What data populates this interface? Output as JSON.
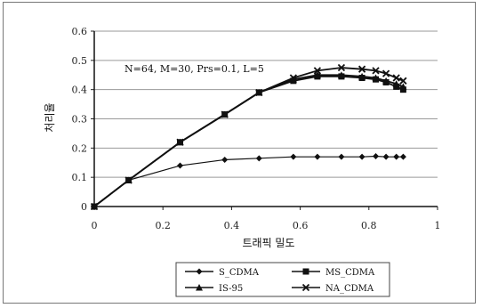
{
  "chart_data": {
    "type": "line",
    "title": "",
    "annotation": "N=64, M=30, Prs=0.1, L=5",
    "xlabel": "트래픽 밀도",
    "ylabel": "처리율",
    "xlim": [
      0,
      1
    ],
    "ylim": [
      0,
      0.6
    ],
    "xticks": [
      0,
      0.2,
      0.4,
      0.6,
      0.8,
      1
    ],
    "xtick_labels": [
      "0",
      "0.2",
      "0.4",
      "0.6",
      "0.8",
      "1"
    ],
    "yticks": [
      0,
      0.1,
      0.2,
      0.3,
      0.4,
      0.5,
      0.6
    ],
    "ytick_labels": [
      "0",
      "0.1",
      "0.2",
      "0.3",
      "0.4",
      "0.5",
      "0.6"
    ],
    "grid": "horizontal",
    "legend_position": "bottom",
    "series": [
      {
        "name": "S_CDMA",
        "marker": "diamond",
        "x": [
          0,
          0.1,
          0.25,
          0.38,
          0.48,
          0.58,
          0.65,
          0.72,
          0.78,
          0.82,
          0.85,
          0.88,
          0.9
        ],
        "values": [
          0,
          0.09,
          0.14,
          0.16,
          0.165,
          0.17,
          0.17,
          0.17,
          0.17,
          0.172,
          0.17,
          0.17,
          0.17
        ]
      },
      {
        "name": "MS_CDMA",
        "marker": "square",
        "x": [
          0,
          0.1,
          0.25,
          0.38,
          0.48,
          0.58,
          0.65,
          0.72,
          0.78,
          0.82,
          0.85,
          0.88,
          0.9
        ],
        "values": [
          0,
          0.09,
          0.22,
          0.315,
          0.39,
          0.43,
          0.445,
          0.445,
          0.44,
          0.435,
          0.425,
          0.41,
          0.4
        ]
      },
      {
        "name": "IS-95",
        "marker": "triangle",
        "x": [
          0,
          0.1,
          0.25,
          0.38,
          0.48,
          0.58,
          0.65,
          0.72,
          0.78,
          0.82,
          0.85,
          0.88,
          0.9
        ],
        "values": [
          0,
          0.09,
          0.22,
          0.315,
          0.39,
          0.435,
          0.45,
          0.45,
          0.445,
          0.44,
          0.43,
          0.42,
          0.41
        ]
      },
      {
        "name": "NA_CDMA",
        "marker": "x",
        "x": [
          0,
          0.1,
          0.25,
          0.38,
          0.48,
          0.58,
          0.65,
          0.72,
          0.78,
          0.82,
          0.85,
          0.88,
          0.9
        ],
        "values": [
          0,
          0.09,
          0.22,
          0.315,
          0.39,
          0.44,
          0.465,
          0.475,
          0.47,
          0.465,
          0.455,
          0.44,
          0.43
        ]
      }
    ]
  }
}
